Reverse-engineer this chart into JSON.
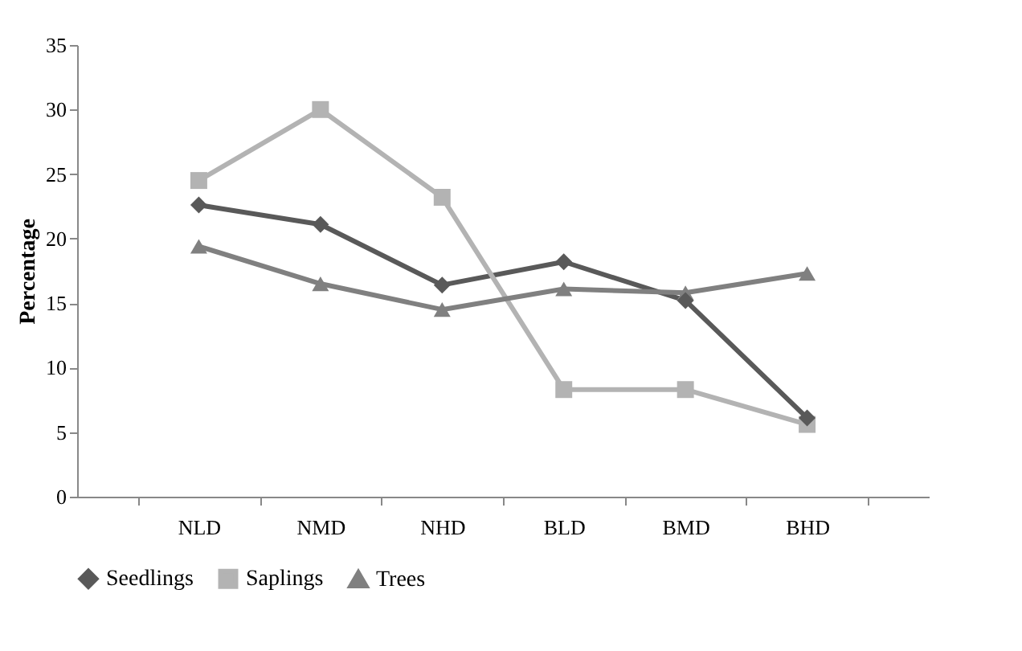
{
  "chart_data": {
    "type": "line",
    "ylabel": "Percentage",
    "categories": [
      "NLD",
      "NMD",
      "NHD",
      "BLD",
      "BMD",
      "BHD"
    ],
    "series": [
      {
        "name": "Seedlings",
        "color": "#595959",
        "marker": "diamond",
        "values": [
          22.6,
          21.1,
          16.4,
          18.2,
          15.2,
          6.1
        ]
      },
      {
        "name": "Saplings",
        "color": "#b3b3b3",
        "marker": "square",
        "values": [
          24.5,
          30,
          23.2,
          8.3,
          8.3,
          5.6
        ]
      },
      {
        "name": "Trees",
        "color": "#808080",
        "marker": "triangle",
        "values": [
          19.4,
          16.5,
          14.5,
          16.1,
          15.8,
          17.3
        ]
      }
    ],
    "ylim": [
      0,
      35
    ],
    "yticks": [
      0,
      5,
      10,
      15,
      20,
      25,
      30,
      35
    ],
    "grid": false,
    "legend": "bottom"
  }
}
